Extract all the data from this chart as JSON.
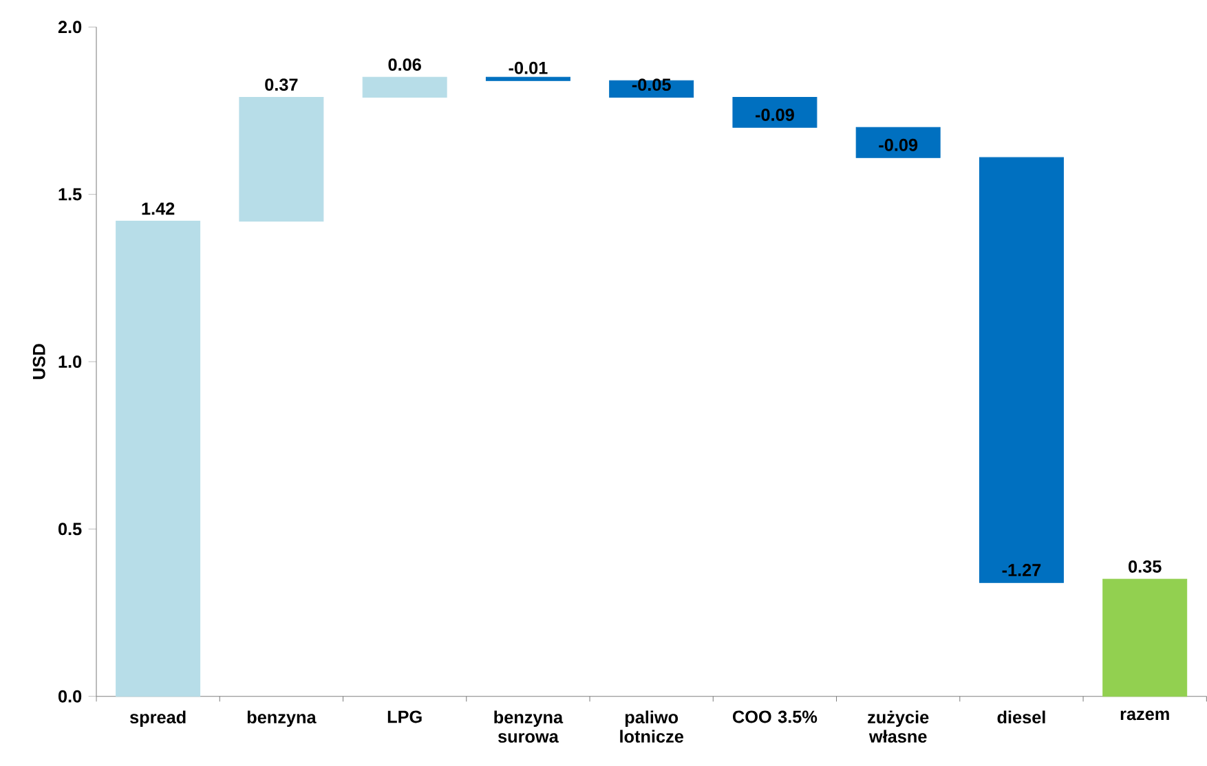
{
  "chart_data": {
    "type": "bar",
    "ylabel": "USD",
    "categories": [
      "spread",
      "benzyna",
      "LPG",
      "benzyna surowa",
      "paliwo lotnicze",
      "COO 3.5%",
      "zużycie własne",
      "diesel",
      "razem"
    ],
    "values": [
      1.42,
      0.37,
      0.06,
      -0.01,
      -0.05,
      -0.09,
      -0.09,
      -1.27,
      0.35
    ],
    "base": [
      0,
      1.42,
      1.79,
      1.85,
      1.84,
      1.79,
      1.7,
      1.61,
      0
    ],
    "colors": [
      "#b7dde8",
      "#b7dde8",
      "#b7dde8",
      "#0070c0",
      "#0070c0",
      "#0070c0",
      "#0070c0",
      "#0070c0",
      "#92d050"
    ],
    "data_labels": true,
    "ylim": [
      0,
      2
    ],
    "yticks": [
      {
        "value": 0,
        "label": "0.0"
      },
      {
        "value": 0.5,
        "label": "0.5"
      },
      {
        "value": 1,
        "label": "1.0"
      },
      {
        "value": 1.5,
        "label": "1.5"
      },
      {
        "value": 2,
        "label": "2.0"
      }
    ],
    "grid": false
  }
}
